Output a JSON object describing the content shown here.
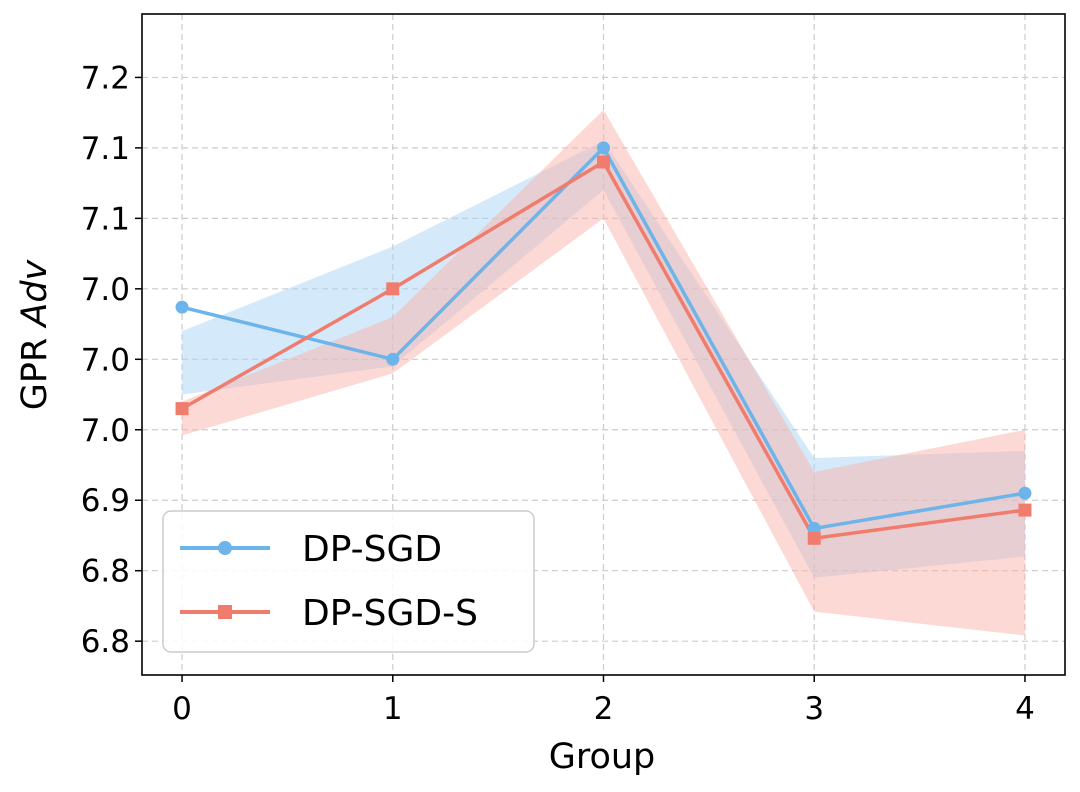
{
  "chart_data": {
    "type": "line",
    "title": "",
    "xlabel": "Group",
    "ylabel_prefix": "GPR ",
    "ylabel_italic": "Adv",
    "x": [
      0,
      1,
      2,
      3,
      4
    ],
    "xticks": [
      "0",
      "1",
      "2",
      "3",
      "4"
    ],
    "xlim": [
      -0.19,
      4.19
    ],
    "ylim": [
      6.776,
      7.245
    ],
    "ytick_values": [
      6.8,
      6.85,
      6.9,
      6.95,
      7.0,
      7.05,
      7.1,
      7.15,
      7.2
    ],
    "ytick_labels": [
      "6.8",
      "6.8",
      "6.9",
      "7.0",
      "7.0",
      "7.0",
      "7.1",
      "7.1",
      "7.2"
    ],
    "grid": true,
    "legend_position": "lower-left",
    "series": [
      {
        "name": "DP-SGD",
        "color": "#6cb4ea",
        "band_color": "#aad4f5",
        "marker": "circle",
        "values": [
          7.037,
          7.0,
          7.15,
          6.88,
          6.905
        ],
        "band_lower": [
          6.975,
          6.995,
          7.12,
          6.845,
          6.86
        ],
        "band_upper": [
          7.02,
          7.08,
          7.155,
          6.93,
          6.935
        ]
      },
      {
        "name": "DP-SGD-S",
        "color": "#f07c6d",
        "band_color": "#f9b3aa",
        "marker": "square",
        "values": [
          6.965,
          7.05,
          7.14,
          6.873,
          6.893
        ],
        "band_lower": [
          6.946,
          6.99,
          7.1,
          6.821,
          6.804
        ],
        "band_upper": [
          6.97,
          7.03,
          7.177,
          6.92,
          6.95
        ]
      }
    ]
  }
}
